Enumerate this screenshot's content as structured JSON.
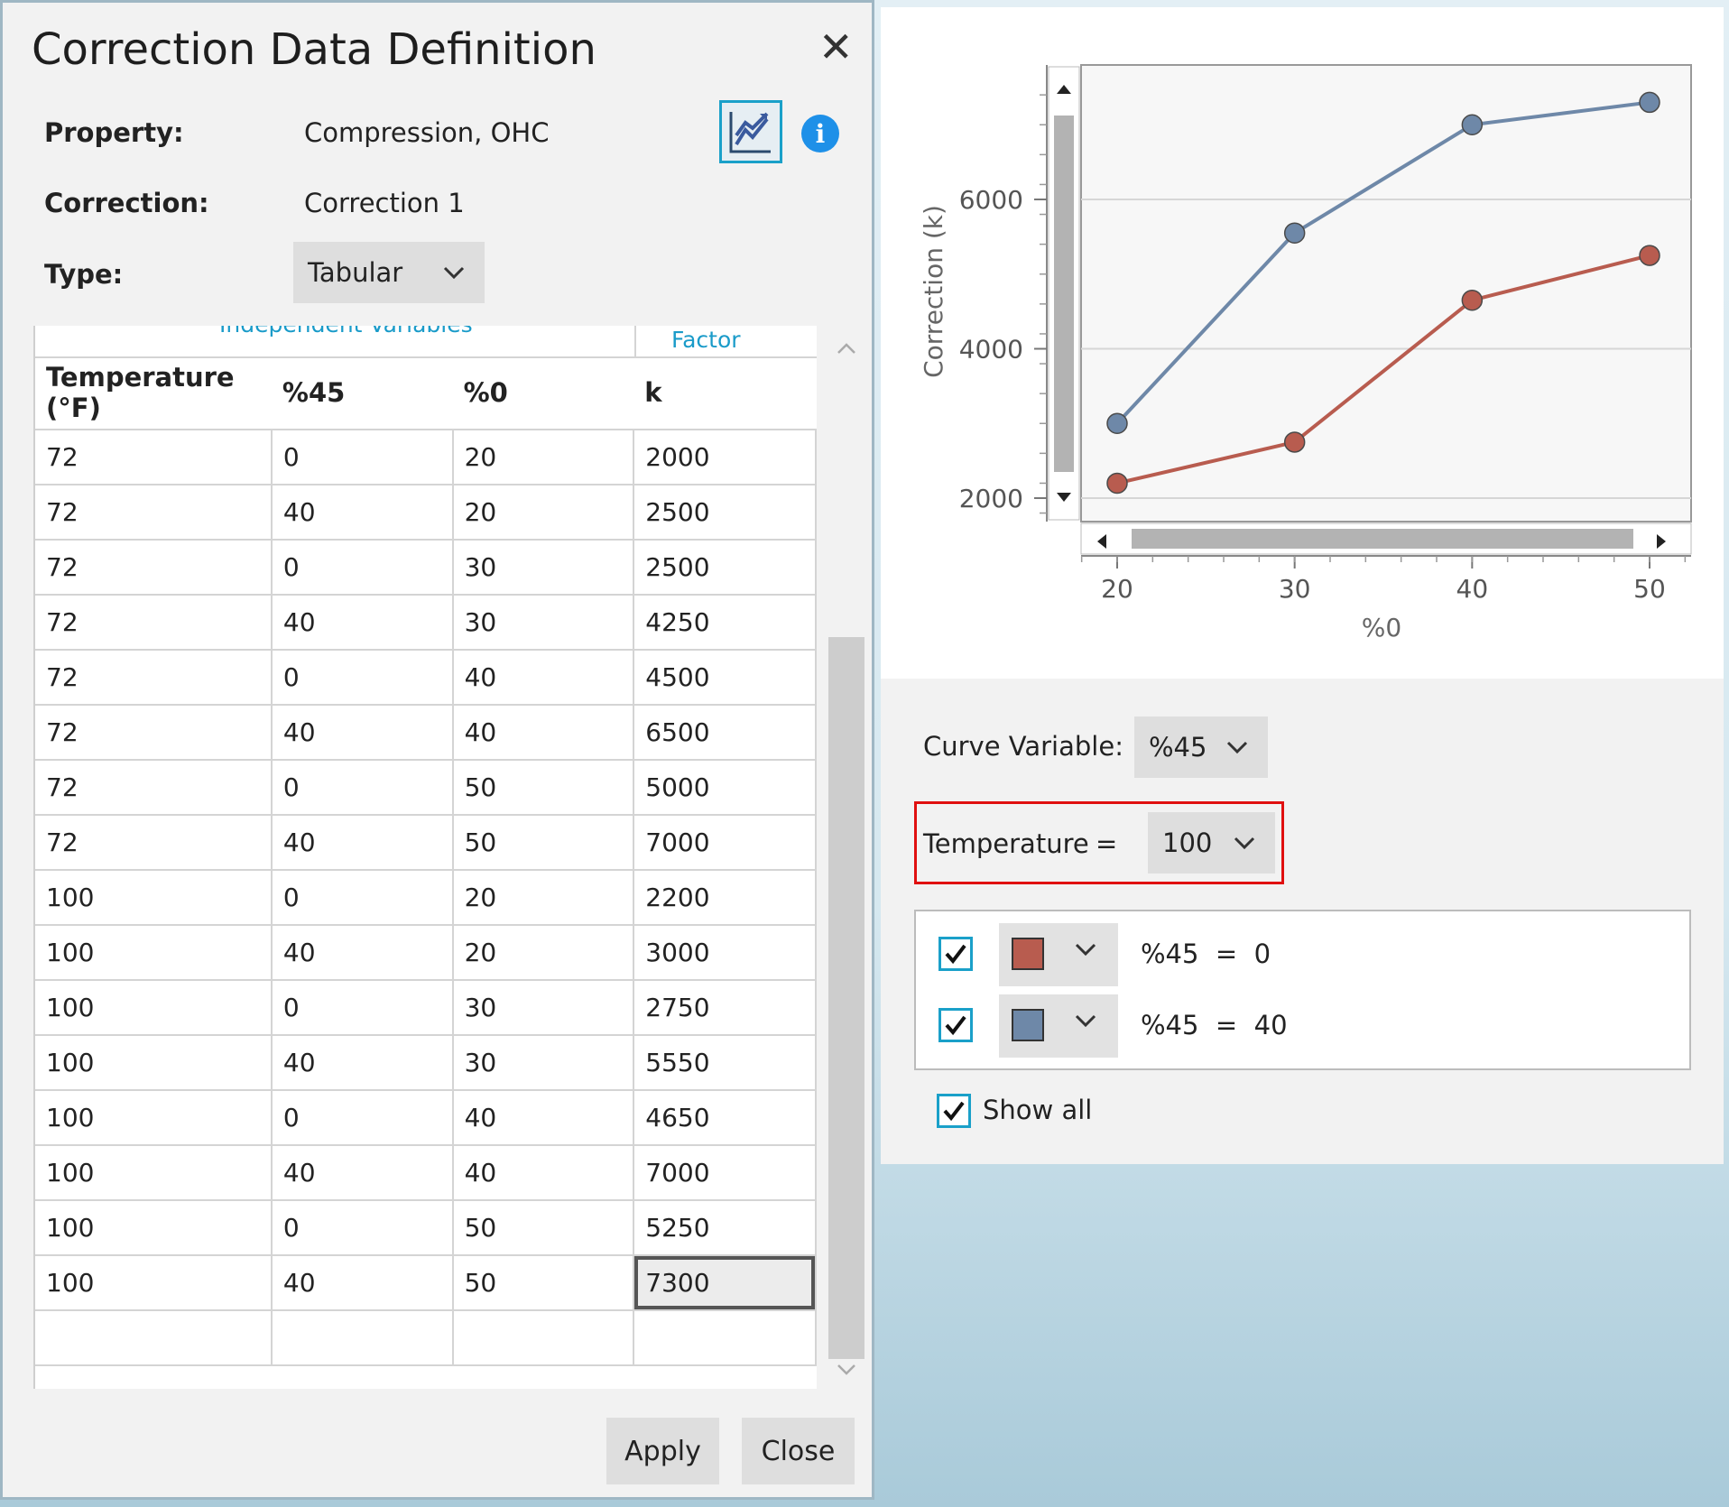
{
  "dialog": {
    "title": "Correction Data Definition",
    "property_label": "Property:",
    "property_value": "Compression, OHC",
    "correction_label": "Correction:",
    "correction_value": "Correction 1",
    "type_label": "Type:",
    "type_value": "Tabular",
    "chart_button_icon": "chart-icon",
    "info_icon_text": "i"
  },
  "grid": {
    "group_headers": [
      "Independent Variables",
      "Factor"
    ],
    "columns": [
      "Temperature (°F)",
      "%45",
      "%0",
      "k"
    ],
    "rows": [
      [
        "72",
        "0",
        "20",
        "2000"
      ],
      [
        "72",
        "40",
        "20",
        "2500"
      ],
      [
        "72",
        "0",
        "30",
        "2500"
      ],
      [
        "72",
        "40",
        "30",
        "4250"
      ],
      [
        "72",
        "0",
        "40",
        "4500"
      ],
      [
        "72",
        "40",
        "40",
        "6500"
      ],
      [
        "72",
        "0",
        "50",
        "5000"
      ],
      [
        "72",
        "40",
        "50",
        "7000"
      ],
      [
        "100",
        "0",
        "20",
        "2200"
      ],
      [
        "100",
        "40",
        "20",
        "3000"
      ],
      [
        "100",
        "0",
        "30",
        "2750"
      ],
      [
        "100",
        "40",
        "30",
        "5550"
      ],
      [
        "100",
        "0",
        "40",
        "4650"
      ],
      [
        "100",
        "40",
        "40",
        "7000"
      ],
      [
        "100",
        "0",
        "50",
        "5250"
      ],
      [
        "100",
        "40",
        "50",
        "7300"
      ],
      [
        "",
        "",
        "",
        ""
      ]
    ],
    "selected_cell": "7300"
  },
  "buttons": {
    "apply": "Apply",
    "close": "Close"
  },
  "chart_data": {
    "type": "line",
    "title": "",
    "xlabel": "%0",
    "ylabel": "Correction (k)",
    "x": [
      20,
      30,
      40,
      50
    ],
    "x_ticks": [
      "20",
      "30",
      "40",
      "50"
    ],
    "y_ticks": [
      "2000",
      "4000",
      "6000"
    ],
    "xlim": [
      20,
      50
    ],
    "ylim": [
      2000,
      7300
    ],
    "grid": true,
    "series": [
      {
        "name": "%45 = 0",
        "values": [
          2200,
          2750,
          4650,
          5250
        ],
        "color": "#b85c4f"
      },
      {
        "name": "%45 = 40",
        "values": [
          3000,
          5550,
          7000,
          7300
        ],
        "color": "#6e88a8"
      }
    ]
  },
  "controls": {
    "curve_variable_label": "Curve Variable:",
    "curve_variable_value": "%45",
    "filter_label": "Temperature",
    "filter_eq": "=",
    "filter_value": "100",
    "series": [
      {
        "label": "%45  =  0",
        "color": "#b85c4f",
        "checked": true
      },
      {
        "label": "%45  =  40",
        "color": "#6e88a8",
        "checked": true
      }
    ],
    "show_all_label": "Show all"
  }
}
